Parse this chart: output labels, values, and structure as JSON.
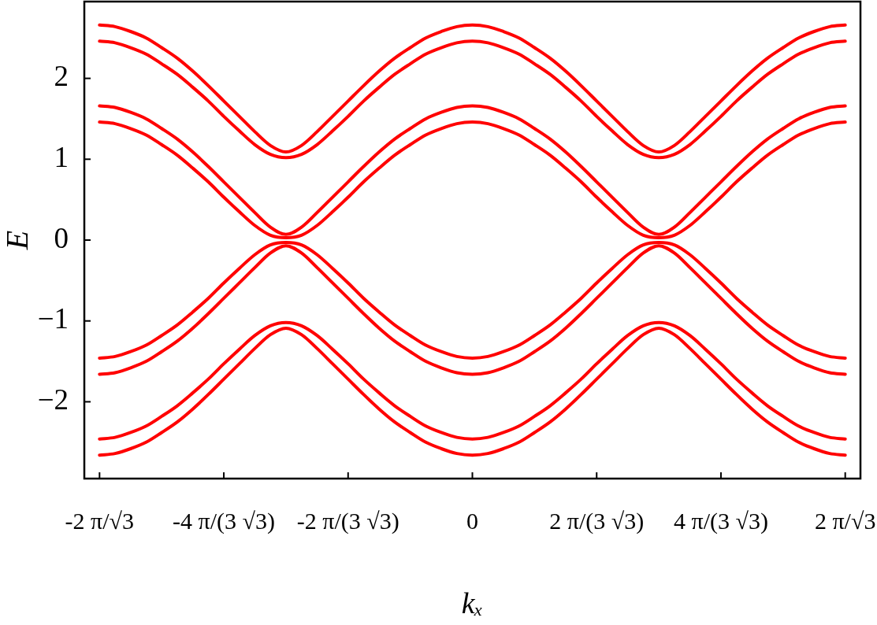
{
  "chart_data": {
    "type": "line",
    "xlabel": "kₓ",
    "ylabel": "E",
    "categories": [
      "-2 π/√3",
      null,
      null,
      null,
      null,
      null,
      null,
      null,
      "-4 π/(3 √3)",
      null,
      null,
      null,
      null,
      null,
      null,
      null,
      "-2 π/(3 √3)",
      null,
      null,
      null,
      null,
      null,
      null,
      null,
      "0",
      null,
      null,
      null,
      null,
      null,
      null,
      null,
      "2 π/(3 √3)",
      null,
      null,
      null,
      null,
      null,
      null,
      null,
      "4 π/(3 √3)",
      null,
      null,
      null,
      null,
      null,
      null,
      null,
      "2 π/√3"
    ],
    "ylim": [
      -2.95,
      2.95
    ],
    "yticks": [
      -2,
      -1,
      0,
      1,
      2
    ],
    "series": [
      {
        "color": "#ff0000",
        "values": [
          2.66,
          2.64,
          2.58,
          2.5,
          2.38,
          2.25,
          2.09,
          1.91,
          1.72,
          1.53,
          1.34,
          1.17,
          1.09,
          1.17,
          1.34,
          1.53,
          1.72,
          1.91,
          2.09,
          2.25,
          2.38,
          2.5,
          2.58,
          2.64,
          2.66,
          2.64,
          2.58,
          2.5,
          2.38,
          2.25,
          2.09,
          1.91,
          1.72,
          1.53,
          1.34,
          1.17,
          1.09,
          1.17,
          1.34,
          1.53,
          1.72,
          1.91,
          2.09,
          2.25,
          2.38,
          2.5,
          2.58,
          2.64,
          2.66
        ]
      },
      {
        "color": "#ff0000",
        "values": [
          2.46,
          2.44,
          2.38,
          2.3,
          2.18,
          2.05,
          1.89,
          1.72,
          1.53,
          1.35,
          1.18,
          1.06,
          1.02,
          1.06,
          1.18,
          1.35,
          1.53,
          1.72,
          1.89,
          2.05,
          2.18,
          2.3,
          2.38,
          2.44,
          2.46,
          2.44,
          2.38,
          2.3,
          2.18,
          2.05,
          1.89,
          1.72,
          1.53,
          1.35,
          1.18,
          1.06,
          1.02,
          1.06,
          1.18,
          1.35,
          1.53,
          1.72,
          1.89,
          2.05,
          2.18,
          2.3,
          2.38,
          2.44,
          2.46
        ]
      },
      {
        "color": "#ff0000",
        "values": [
          1.66,
          1.64,
          1.58,
          1.5,
          1.38,
          1.25,
          1.09,
          0.91,
          0.72,
          0.53,
          0.34,
          0.16,
          0.07,
          0.16,
          0.34,
          0.53,
          0.72,
          0.91,
          1.09,
          1.25,
          1.38,
          1.5,
          1.58,
          1.64,
          1.66,
          1.64,
          1.58,
          1.5,
          1.38,
          1.25,
          1.09,
          0.91,
          0.72,
          0.53,
          0.34,
          0.16,
          0.07,
          0.16,
          0.34,
          0.53,
          0.72,
          0.91,
          1.09,
          1.25,
          1.38,
          1.5,
          1.58,
          1.64,
          1.66
        ]
      },
      {
        "color": "#ff0000",
        "values": [
          1.46,
          1.44,
          1.38,
          1.3,
          1.18,
          1.05,
          0.89,
          0.72,
          0.53,
          0.35,
          0.18,
          0.06,
          0.03,
          0.06,
          0.18,
          0.35,
          0.53,
          0.72,
          0.89,
          1.05,
          1.18,
          1.3,
          1.38,
          1.44,
          1.46,
          1.44,
          1.38,
          1.3,
          1.18,
          1.05,
          0.89,
          0.72,
          0.53,
          0.35,
          0.18,
          0.06,
          0.03,
          0.06,
          0.18,
          0.35,
          0.53,
          0.72,
          0.89,
          1.05,
          1.18,
          1.3,
          1.38,
          1.44,
          1.46
        ]
      },
      {
        "color": "#ff0000",
        "values": [
          -1.46,
          -1.44,
          -1.38,
          -1.3,
          -1.18,
          -1.05,
          -0.89,
          -0.72,
          -0.53,
          -0.35,
          -0.18,
          -0.06,
          -0.03,
          -0.06,
          -0.18,
          -0.35,
          -0.53,
          -0.72,
          -0.89,
          -1.05,
          -1.18,
          -1.3,
          -1.38,
          -1.44,
          -1.46,
          -1.44,
          -1.38,
          -1.3,
          -1.18,
          -1.05,
          -0.89,
          -0.72,
          -0.53,
          -0.35,
          -0.18,
          -0.06,
          -0.03,
          -0.06,
          -0.18,
          -0.35,
          -0.53,
          -0.72,
          -0.89,
          -1.05,
          -1.18,
          -1.3,
          -1.38,
          -1.44,
          -1.46
        ]
      },
      {
        "color": "#ff0000",
        "values": [
          -1.66,
          -1.64,
          -1.58,
          -1.5,
          -1.38,
          -1.25,
          -1.09,
          -0.91,
          -0.72,
          -0.53,
          -0.34,
          -0.16,
          -0.07,
          -0.16,
          -0.34,
          -0.53,
          -0.72,
          -0.91,
          -1.09,
          -1.25,
          -1.38,
          -1.5,
          -1.58,
          -1.64,
          -1.66,
          -1.64,
          -1.58,
          -1.5,
          -1.38,
          -1.25,
          -1.09,
          -0.91,
          -0.72,
          -0.53,
          -0.34,
          -0.16,
          -0.07,
          -0.16,
          -0.34,
          -0.53,
          -0.72,
          -0.91,
          -1.09,
          -1.25,
          -1.38,
          -1.5,
          -1.58,
          -1.64,
          -1.66
        ]
      },
      {
        "color": "#ff0000",
        "values": [
          -2.46,
          -2.44,
          -2.38,
          -2.3,
          -2.18,
          -2.05,
          -1.89,
          -1.72,
          -1.53,
          -1.35,
          -1.18,
          -1.06,
          -1.02,
          -1.06,
          -1.18,
          -1.35,
          -1.53,
          -1.72,
          -1.89,
          -2.05,
          -2.18,
          -2.3,
          -2.38,
          -2.44,
          -2.46,
          -2.44,
          -2.38,
          -2.3,
          -2.18,
          -2.05,
          -1.89,
          -1.72,
          -1.53,
          -1.35,
          -1.18,
          -1.06,
          -1.02,
          -1.06,
          -1.18,
          -1.35,
          -1.53,
          -1.72,
          -1.89,
          -2.05,
          -2.18,
          -2.3,
          -2.38,
          -2.44,
          -2.46
        ]
      },
      {
        "color": "#ff0000",
        "values": [
          -2.66,
          -2.64,
          -2.58,
          -2.5,
          -2.38,
          -2.25,
          -2.09,
          -1.91,
          -1.72,
          -1.53,
          -1.34,
          -1.17,
          -1.09,
          -1.17,
          -1.34,
          -1.53,
          -1.72,
          -1.91,
          -2.09,
          -2.25,
          -2.38,
          -2.5,
          -2.58,
          -2.64,
          -2.66,
          -2.64,
          -2.58,
          -2.5,
          -2.38,
          -2.25,
          -2.09,
          -1.91,
          -1.72,
          -1.53,
          -1.34,
          -1.17,
          -1.09,
          -1.17,
          -1.34,
          -1.53,
          -1.72,
          -1.91,
          -2.09,
          -2.25,
          -2.38,
          -2.5,
          -2.58,
          -2.64,
          -2.66
        ]
      }
    ]
  }
}
